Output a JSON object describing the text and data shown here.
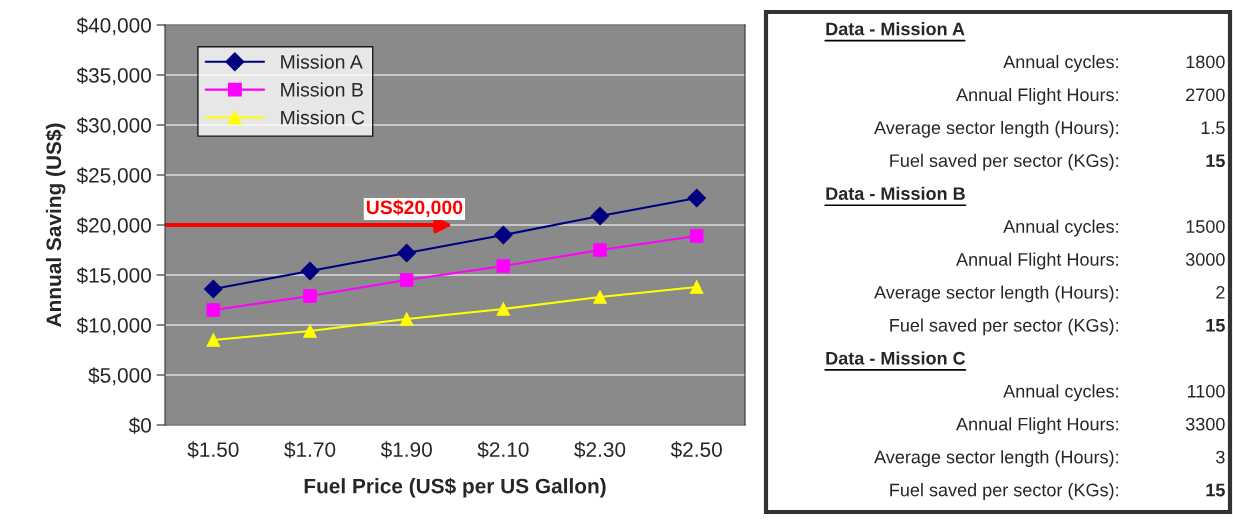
{
  "chart_data": [
    {
      "type": "line",
      "xlabel": "Fuel Price (US$ per US Gallon)",
      "ylabel": "Annual Saving (US$)",
      "categories": [
        "$1.50",
        "$1.70",
        "$1.90",
        "$2.10",
        "$2.30",
        "$2.50"
      ],
      "series": [
        {
          "name": "Mission A",
          "color": "#000080",
          "marker": "diamond",
          "values": [
            13600,
            15400,
            17200,
            19000,
            20900,
            22700
          ]
        },
        {
          "name": "Mission B",
          "color": "#ff00ff",
          "marker": "square",
          "values": [
            11500,
            12900,
            14500,
            15900,
            17500,
            18900
          ]
        },
        {
          "name": "Mission C",
          "color": "#ffff00",
          "marker": "triangle",
          "values": [
            8500,
            9400,
            10600,
            11600,
            12800,
            13800
          ]
        }
      ],
      "ylim": [
        0,
        40000
      ],
      "yticks": [
        {
          "value": 0,
          "label": "$0"
        },
        {
          "value": 5000,
          "label": "$5,000"
        },
        {
          "value": 10000,
          "label": "$10,000"
        },
        {
          "value": 15000,
          "label": "$15,000"
        },
        {
          "value": 20000,
          "label": "$20,000"
        },
        {
          "value": 25000,
          "label": "$25,000"
        },
        {
          "value": 30000,
          "label": "$30,000"
        },
        {
          "value": 35000,
          "label": "$35,000"
        },
        {
          "value": 40000,
          "label": "$40,000"
        }
      ],
      "grid": "y",
      "legend": "top left",
      "ref_lines": [
        {
          "axis": "y",
          "value": 20000,
          "label": "US$20,000",
          "color": "#ff0000"
        }
      ]
    },
    {
      "type": "other",
      "title": "Data - Mission A",
      "annotations": [
        "Annual cycles:",
        "1800",
        "Annual Flight Hours:",
        "2700",
        "Average sector length (Hours):",
        "1.5",
        "Fuel saved per sector (KGs):",
        "15"
      ]
    },
    {
      "type": "other",
      "title": "Data - Mission B",
      "annotations": [
        "Annual cycles:",
        "1500",
        "Annual Flight Hours:",
        "3000",
        "Average sector length (Hours):",
        "2",
        "Fuel saved per sector (KGs):",
        "15"
      ]
    },
    {
      "type": "other",
      "title": "Data - Mission C",
      "annotations": [
        "Annual cycles:",
        "1100",
        "Annual Flight Hours:",
        "3300",
        "Average sector length (Hours):",
        "3",
        "Fuel saved per sector (KGs):",
        "15"
      ]
    }
  ]
}
